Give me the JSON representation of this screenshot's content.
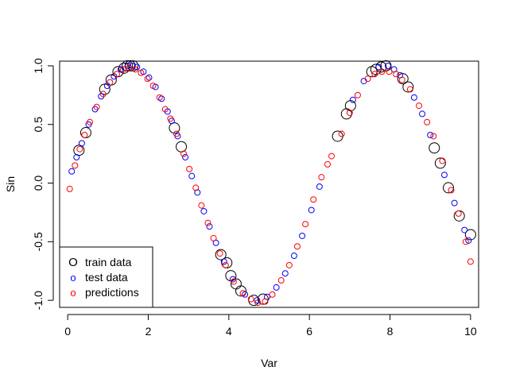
{
  "chart_data": {
    "type": "scatter",
    "title": "",
    "xlabel": "Var",
    "ylabel": "Sin",
    "xlim": [
      -0.2,
      10.2
    ],
    "ylim": [
      -1.06,
      1.04
    ],
    "xticks": [
      0,
      2,
      4,
      6,
      8,
      10
    ],
    "xtick_labels": [
      "0",
      "2",
      "4",
      "6",
      "8",
      "10"
    ],
    "yticks": [
      -1.0,
      -0.5,
      0.0,
      0.5,
      1.0
    ],
    "ytick_labels": [
      "-1.0",
      "-0.5",
      "0.0",
      "0.5",
      "1.0"
    ],
    "grid": false,
    "legend": {
      "position": "bottom-left",
      "entries": [
        {
          "label": "train data",
          "color": "#000000",
          "symbol": "O"
        },
        {
          "label": "test data",
          "color": "#0000ff",
          "symbol": "o"
        },
        {
          "label": "predictions",
          "color": "#ff0000",
          "symbol": "o"
        }
      ]
    },
    "series": [
      {
        "name": "train data",
        "color": "#000000",
        "marker": "large-open-circle",
        "x": [
          0.28,
          0.45,
          0.92,
          1.08,
          1.25,
          1.4,
          1.48,
          1.55,
          1.62,
          2.65,
          2.82,
          3.8,
          3.95,
          4.05,
          4.18,
          4.3,
          4.62,
          4.85,
          6.7,
          6.92,
          7.02,
          7.55,
          7.65,
          7.78,
          7.9,
          8.32,
          8.45,
          9.1,
          9.25,
          9.45,
          9.72,
          10.0
        ],
        "y": [
          0.28,
          0.43,
          0.8,
          0.88,
          0.95,
          0.98,
          1.0,
          1.0,
          1.0,
          0.47,
          0.31,
          -0.61,
          -0.68,
          -0.79,
          -0.86,
          -0.92,
          -1.0,
          -0.99,
          0.4,
          0.59,
          0.66,
          0.95,
          0.97,
          0.99,
          1.0,
          0.89,
          0.82,
          0.3,
          0.17,
          -0.04,
          -0.28,
          -0.44
        ]
      },
      {
        "name": "test data",
        "color": "#0000ff",
        "marker": "open-circle",
        "x": [
          0.1,
          0.22,
          0.35,
          0.52,
          0.68,
          0.83,
          0.98,
          1.15,
          1.32,
          1.5,
          1.6,
          1.72,
          1.88,
          2.02,
          2.18,
          2.33,
          2.48,
          2.58,
          2.73,
          2.92,
          3.08,
          3.22,
          3.38,
          3.52,
          3.68,
          3.88,
          4.1,
          4.4,
          4.7,
          4.95,
          5.18,
          5.4,
          5.62,
          5.82,
          6.05,
          6.25,
          7.08,
          7.35,
          7.72,
          7.95,
          8.1,
          8.25,
          8.6,
          8.8,
          9.0,
          9.35,
          9.6,
          9.85,
          9.95
        ],
        "y": [
          0.1,
          0.22,
          0.34,
          0.5,
          0.63,
          0.74,
          0.83,
          0.91,
          0.97,
          1.0,
          1.0,
          0.99,
          0.95,
          0.9,
          0.82,
          0.72,
          0.61,
          0.53,
          0.4,
          0.22,
          0.06,
          -0.08,
          -0.24,
          -0.37,
          -0.51,
          -0.67,
          -0.82,
          -0.95,
          -1.0,
          -0.97,
          -0.89,
          -0.77,
          -0.62,
          -0.45,
          -0.23,
          -0.03,
          0.71,
          0.87,
          0.99,
          1.0,
          0.97,
          0.92,
          0.73,
          0.59,
          0.41,
          0.07,
          -0.17,
          -0.4,
          -0.49
        ]
      },
      {
        "name": "predictions",
        "color": "#ff0000",
        "marker": "open-circle",
        "x": [
          0.05,
          0.18,
          0.3,
          0.42,
          0.55,
          0.72,
          0.88,
          1.05,
          1.22,
          1.38,
          1.52,
          1.68,
          1.82,
          1.98,
          2.12,
          2.28,
          2.42,
          2.55,
          2.7,
          2.88,
          3.02,
          3.18,
          3.32,
          3.48,
          3.62,
          3.78,
          3.92,
          4.12,
          4.35,
          4.55,
          4.72,
          4.9,
          5.08,
          5.3,
          5.5,
          5.7,
          5.9,
          6.1,
          6.3,
          6.45,
          6.55,
          6.8,
          7.0,
          7.2,
          7.45,
          7.62,
          7.8,
          7.98,
          8.15,
          8.3,
          8.5,
          8.72,
          8.92,
          9.08,
          9.3,
          9.52,
          9.7,
          9.88,
          10.0
        ],
        "y": [
          -0.05,
          0.15,
          0.29,
          0.41,
          0.52,
          0.65,
          0.76,
          0.86,
          0.93,
          0.97,
          0.98,
          0.97,
          0.94,
          0.89,
          0.83,
          0.73,
          0.63,
          0.55,
          0.42,
          0.25,
          0.12,
          -0.04,
          -0.19,
          -0.34,
          -0.47,
          -0.6,
          -0.7,
          -0.84,
          -0.94,
          -0.99,
          -1.02,
          -1.01,
          -0.95,
          -0.83,
          -0.7,
          -0.54,
          -0.35,
          -0.14,
          0.05,
          0.16,
          0.23,
          0.42,
          0.6,
          0.75,
          0.89,
          0.93,
          0.95,
          0.95,
          0.93,
          0.88,
          0.8,
          0.66,
          0.52,
          0.4,
          0.19,
          -0.06,
          -0.26,
          -0.5,
          -0.67
        ]
      }
    ]
  }
}
